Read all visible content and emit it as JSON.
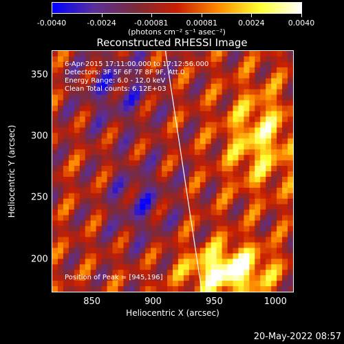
{
  "colorbar": {
    "ticks": [
      "-0.0040",
      "-0.0024",
      "-0.00081",
      "0.00081",
      "0.0024",
      "0.0040"
    ],
    "tick_values": [
      -0.004,
      -0.0024,
      -0.00081,
      0.00081,
      0.0024,
      0.004
    ],
    "range": [
      -0.004,
      0.004
    ],
    "unit": "(photons cm⁻² s⁻¹ asec⁻²)",
    "colors": [
      "#0000ff",
      "#5a2e9c",
      "#7a2a3a",
      "#c81e00",
      "#ff8a00",
      "#ffff30",
      "#ffffff"
    ]
  },
  "title": "Reconstructed RHESSI Image",
  "info": {
    "time": "6-Apr-2015 17:11:00.000 to 17:12:56.000",
    "detectors": "Detectors: 3F 5F 6F 7F 8F 9F, Att 0",
    "energy": "Energy Range: 6.0 - 12.0 keV",
    "clean": "Clean    Total counts: 6.12E+03",
    "peak": "Position of Peak = [945,196]"
  },
  "axes": {
    "xlabel": "Heliocentric X (arcsec)",
    "ylabel": "Heliocentric Y (arcsec)",
    "xticks": [
      "850",
      "900",
      "950",
      "1000"
    ],
    "xtick_values": [
      850,
      900,
      950,
      1000
    ],
    "yticks": [
      "200",
      "250",
      "300",
      "350"
    ],
    "ytick_values": [
      200,
      250,
      300,
      350
    ],
    "xlim": [
      817,
      1015
    ],
    "ylim": [
      173,
      370
    ]
  },
  "limb_line": {
    "x": [
      910,
      940
    ],
    "y": [
      370,
      173
    ]
  },
  "peak_position": [
    945,
    196
  ],
  "date_stamp": "20-May-2022 08:57"
}
